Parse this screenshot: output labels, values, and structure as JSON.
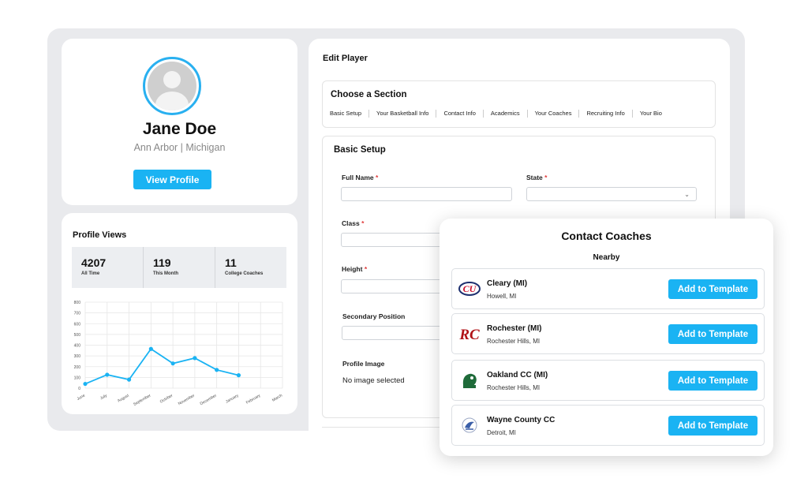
{
  "profile": {
    "name": "Jane Doe",
    "city": "Ann Arbor",
    "state": "Michigan",
    "location": "Ann Arbor |  Michigan",
    "view_profile_label": "View Profile"
  },
  "profile_views": {
    "title": "Profile Views",
    "stats": [
      {
        "value": "4207",
        "label": "All Time"
      },
      {
        "value": "119",
        "label": "This Month"
      },
      {
        "value": "11",
        "label": "College Coaches"
      }
    ]
  },
  "chart_data": {
    "type": "line",
    "categories": [
      "June",
      "July",
      "August",
      "September",
      "October",
      "November",
      "December",
      "January",
      "February",
      "March"
    ],
    "values": [
      40,
      125,
      80,
      365,
      230,
      280,
      170,
      120,
      null,
      null
    ],
    "y_ticks": [
      "0",
      "100",
      "200",
      "300",
      "400",
      "500",
      "600",
      "700",
      "800"
    ],
    "ylim": [
      0,
      800
    ],
    "grid": true,
    "color": "#1ab3f3"
  },
  "edit_player": {
    "title": "Edit Player",
    "choose_section_title": "Choose a Section",
    "tabs": [
      "Basic Setup",
      "Your Basketball Info",
      "Contact Info",
      "Academics",
      "Your Coaches",
      "Recruiting Info",
      "Your Bio"
    ],
    "basic_setup_title": "Basic Setup",
    "fields": {
      "full_name": "Full Name",
      "state": "State",
      "class": "Class",
      "height": "Height",
      "secondary_position": "Secondary Position",
      "profile_image": "Profile Image"
    },
    "required_mark": "*",
    "no_image": "No image selected"
  },
  "contact_coaches": {
    "title": "Contact Coaches",
    "nearby_label": "Nearby",
    "add_label": "Add to Template",
    "coaches": [
      {
        "name": "Cleary (MI)",
        "location": "Howell, MI",
        "logo_text": "CU",
        "logo_color": "#c8102e"
      },
      {
        "name": "Rochester (MI)",
        "location": "Rochester Hills, MI",
        "logo_text": "RC",
        "logo_color": "#b01217"
      },
      {
        "name": "Oakland CC (MI)",
        "location": "Rochester Hills, MI",
        "logo_text": "",
        "logo_color": "#1f6b3a"
      },
      {
        "name": "Wayne County CC",
        "location": "Detroit, MI",
        "logo_text": "",
        "logo_color": "#3a5ea8"
      }
    ]
  },
  "colors": {
    "accent": "#1ab3f3",
    "required": "#e03a3a",
    "frame_bg": "#e9eaed"
  }
}
